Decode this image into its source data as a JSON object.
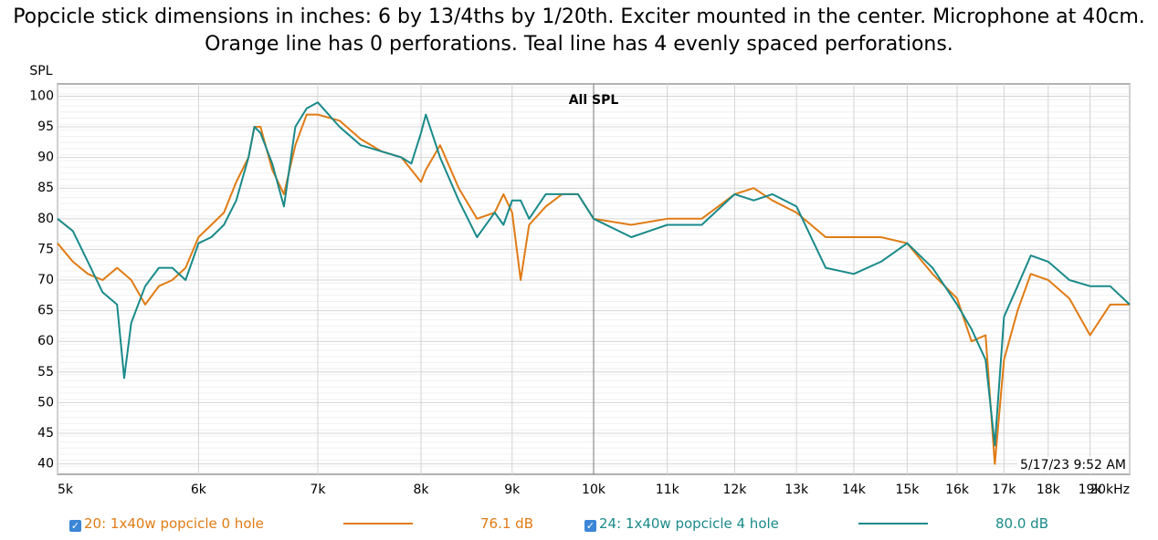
{
  "chart_data": {
    "type": "line",
    "title": "Popcicle stick dimensions in inches: 6 by 13/4ths by 1/20th. Exciter mounted in the center. Microphone at 40cm. Orange line has 0 perforations. Teal line has 4 evenly spaced perforations.",
    "plot_label": "All SPL",
    "timestamp": "5/17/23 9:52 AM",
    "y_label": "SPL",
    "x_log": true,
    "grid": true,
    "xlim": [
      5000,
      20000
    ],
    "ylim": [
      38.3,
      102
    ],
    "yticks": [
      40,
      45,
      50,
      55,
      60,
      65,
      70,
      75,
      80,
      85,
      90,
      95,
      100
    ],
    "xticks": [
      {
        "value": 5000,
        "label": "5k"
      },
      {
        "value": 6000,
        "label": "6k"
      },
      {
        "value": 7000,
        "label": "7k"
      },
      {
        "value": 8000,
        "label": "8k"
      },
      {
        "value": 9000,
        "label": "9k"
      },
      {
        "value": 10000,
        "label": "10k"
      },
      {
        "value": 11000,
        "label": "11k"
      },
      {
        "value": 12000,
        "label": "12k"
      },
      {
        "value": 13000,
        "label": "13k"
      },
      {
        "value": 14000,
        "label": "14k"
      },
      {
        "value": 15000,
        "label": "15k"
      },
      {
        "value": 16000,
        "label": "16k"
      },
      {
        "value": 17000,
        "label": "17k"
      },
      {
        "value": 18000,
        "label": "18k"
      },
      {
        "value": 19000,
        "label": "19k"
      },
      {
        "value": 20000,
        "label": "20kHz"
      }
    ],
    "x": [
      5000,
      5100,
      5200,
      5300,
      5400,
      5450,
      5500,
      5600,
      5700,
      5800,
      5900,
      6000,
      6100,
      6200,
      6300,
      6400,
      6450,
      6500,
      6600,
      6700,
      6800,
      6900,
      7000,
      7200,
      7400,
      7600,
      7800,
      7900,
      8000,
      8050,
      8200,
      8400,
      8600,
      8800,
      8900,
      9000,
      9100,
      9200,
      9400,
      9600,
      9800,
      10000,
      10500,
      11000,
      11500,
      12000,
      12300,
      12600,
      13000,
      13500,
      14000,
      14500,
      15000,
      15500,
      16000,
      16300,
      16600,
      16800,
      17000,
      17300,
      17600,
      18000,
      18500,
      19000,
      19500,
      20000
    ],
    "series": [
      {
        "name": "20: 1x40w popcicle 0 hole",
        "legend_value": "76.1 dB",
        "color": "#e07b14",
        "values": [
          76,
          73,
          71,
          70,
          72,
          71,
          70,
          66,
          69,
          70,
          72,
          77,
          79,
          81,
          86,
          90,
          95,
          95,
          88,
          84,
          92,
          97,
          97,
          96,
          93,
          91,
          90,
          88,
          86,
          88,
          92,
          85,
          80,
          81,
          84,
          81,
          70,
          79,
          82,
          84,
          84,
          80,
          79,
          80,
          80,
          84,
          85,
          83,
          81,
          77,
          77,
          77,
          76,
          71,
          67,
          60,
          61,
          40,
          57,
          65,
          71,
          70,
          67,
          61,
          66,
          66
        ]
      },
      {
        "name": "24: 1x40w popcicle 4 hole",
        "legend_value": "80.0 dB",
        "color": "#1a8a8a",
        "values": [
          80,
          78,
          73,
          68,
          66,
          54,
          63,
          69,
          72,
          72,
          70,
          76,
          77,
          79,
          83,
          90,
          95,
          94,
          89,
          82,
          95,
          98,
          99,
          95,
          92,
          91,
          90,
          89,
          94,
          97,
          90,
          83,
          77,
          81,
          79,
          83,
          83,
          80,
          84,
          84,
          84,
          80,
          77,
          79,
          79,
          84,
          83,
          84,
          82,
          72,
          71,
          73,
          76,
          72,
          66,
          62,
          57,
          43,
          64,
          69,
          74,
          73,
          70,
          69,
          69,
          66
        ]
      }
    ]
  }
}
